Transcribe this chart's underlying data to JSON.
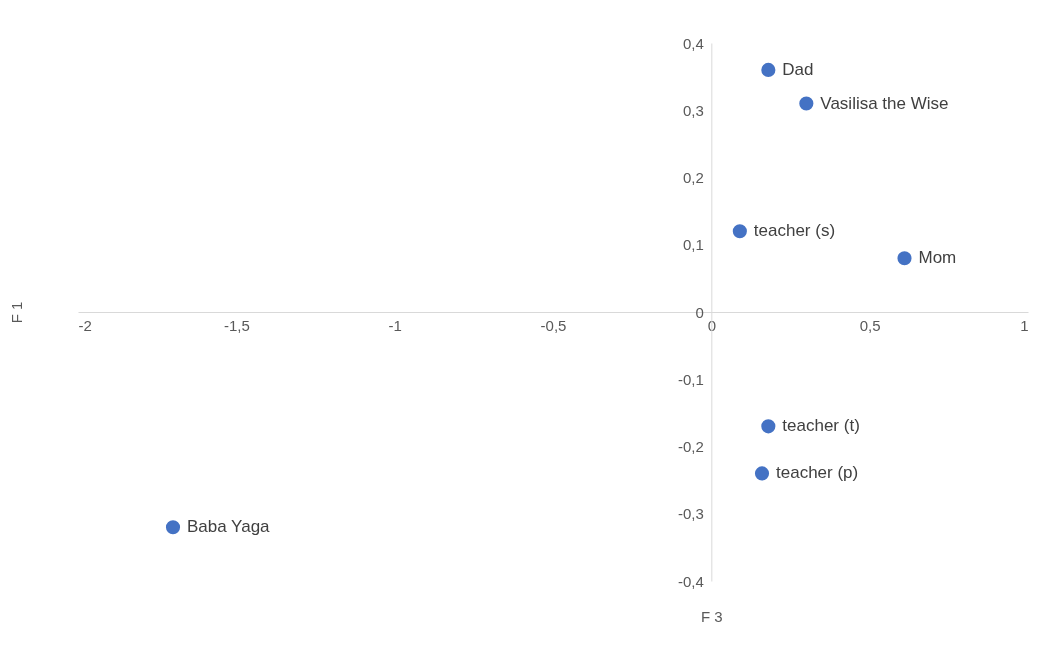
{
  "chart_data": {
    "type": "scatter",
    "xlabel": "F 3",
    "ylabel": "F 1",
    "x": [
      0.18,
      0.3,
      0.09,
      0.61,
      0.18,
      0.16,
      -1.7
    ],
    "values": [
      0.36,
      0.31,
      0.12,
      0.08,
      -0.17,
      -0.24,
      -0.32
    ],
    "color": "#4472c4",
    "marker": "circle",
    "grid": false,
    "xlim": [
      -2,
      1
    ],
    "xticks": [
      {
        "value": -2,
        "label": "-2"
      },
      {
        "value": -1.5,
        "label": "-1,5"
      },
      {
        "value": -1,
        "label": "-1"
      },
      {
        "value": -0.5,
        "label": "-0,5"
      },
      {
        "value": 0,
        "label": "0"
      },
      {
        "value": 0.5,
        "label": "0,5"
      },
      {
        "value": 1,
        "label": "1"
      }
    ],
    "ylim": [
      -0.4,
      0.4
    ],
    "yticks": [
      {
        "value": -0.4,
        "label": "-0,4"
      },
      {
        "value": -0.3,
        "label": "-0,3"
      },
      {
        "value": -0.2,
        "label": "-0,2"
      },
      {
        "value": -0.1,
        "label": "-0,1"
      },
      {
        "value": 0,
        "label": "0"
      },
      {
        "value": 0.1,
        "label": "0,1"
      },
      {
        "value": 0.2,
        "label": "0,2"
      },
      {
        "value": 0.3,
        "label": "0,3"
      },
      {
        "value": 0.4,
        "label": "0,4"
      }
    ],
    "annotations": [
      {
        "text": "Dad",
        "x": 0.18,
        "y": 0.36
      },
      {
        "text": "Vasilisa the Wise",
        "x": 0.3,
        "y": 0.31
      },
      {
        "text": "teacher (s)",
        "x": 0.09,
        "y": 0.12
      },
      {
        "text": "Mom",
        "x": 0.61,
        "y": 0.08
      },
      {
        "text": "teacher (t)",
        "x": 0.18,
        "y": -0.17
      },
      {
        "text": "teacher (p)",
        "x": 0.16,
        "y": -0.24
      },
      {
        "text": "Baba Yaga",
        "x": -1.7,
        "y": -0.32
      }
    ]
  }
}
